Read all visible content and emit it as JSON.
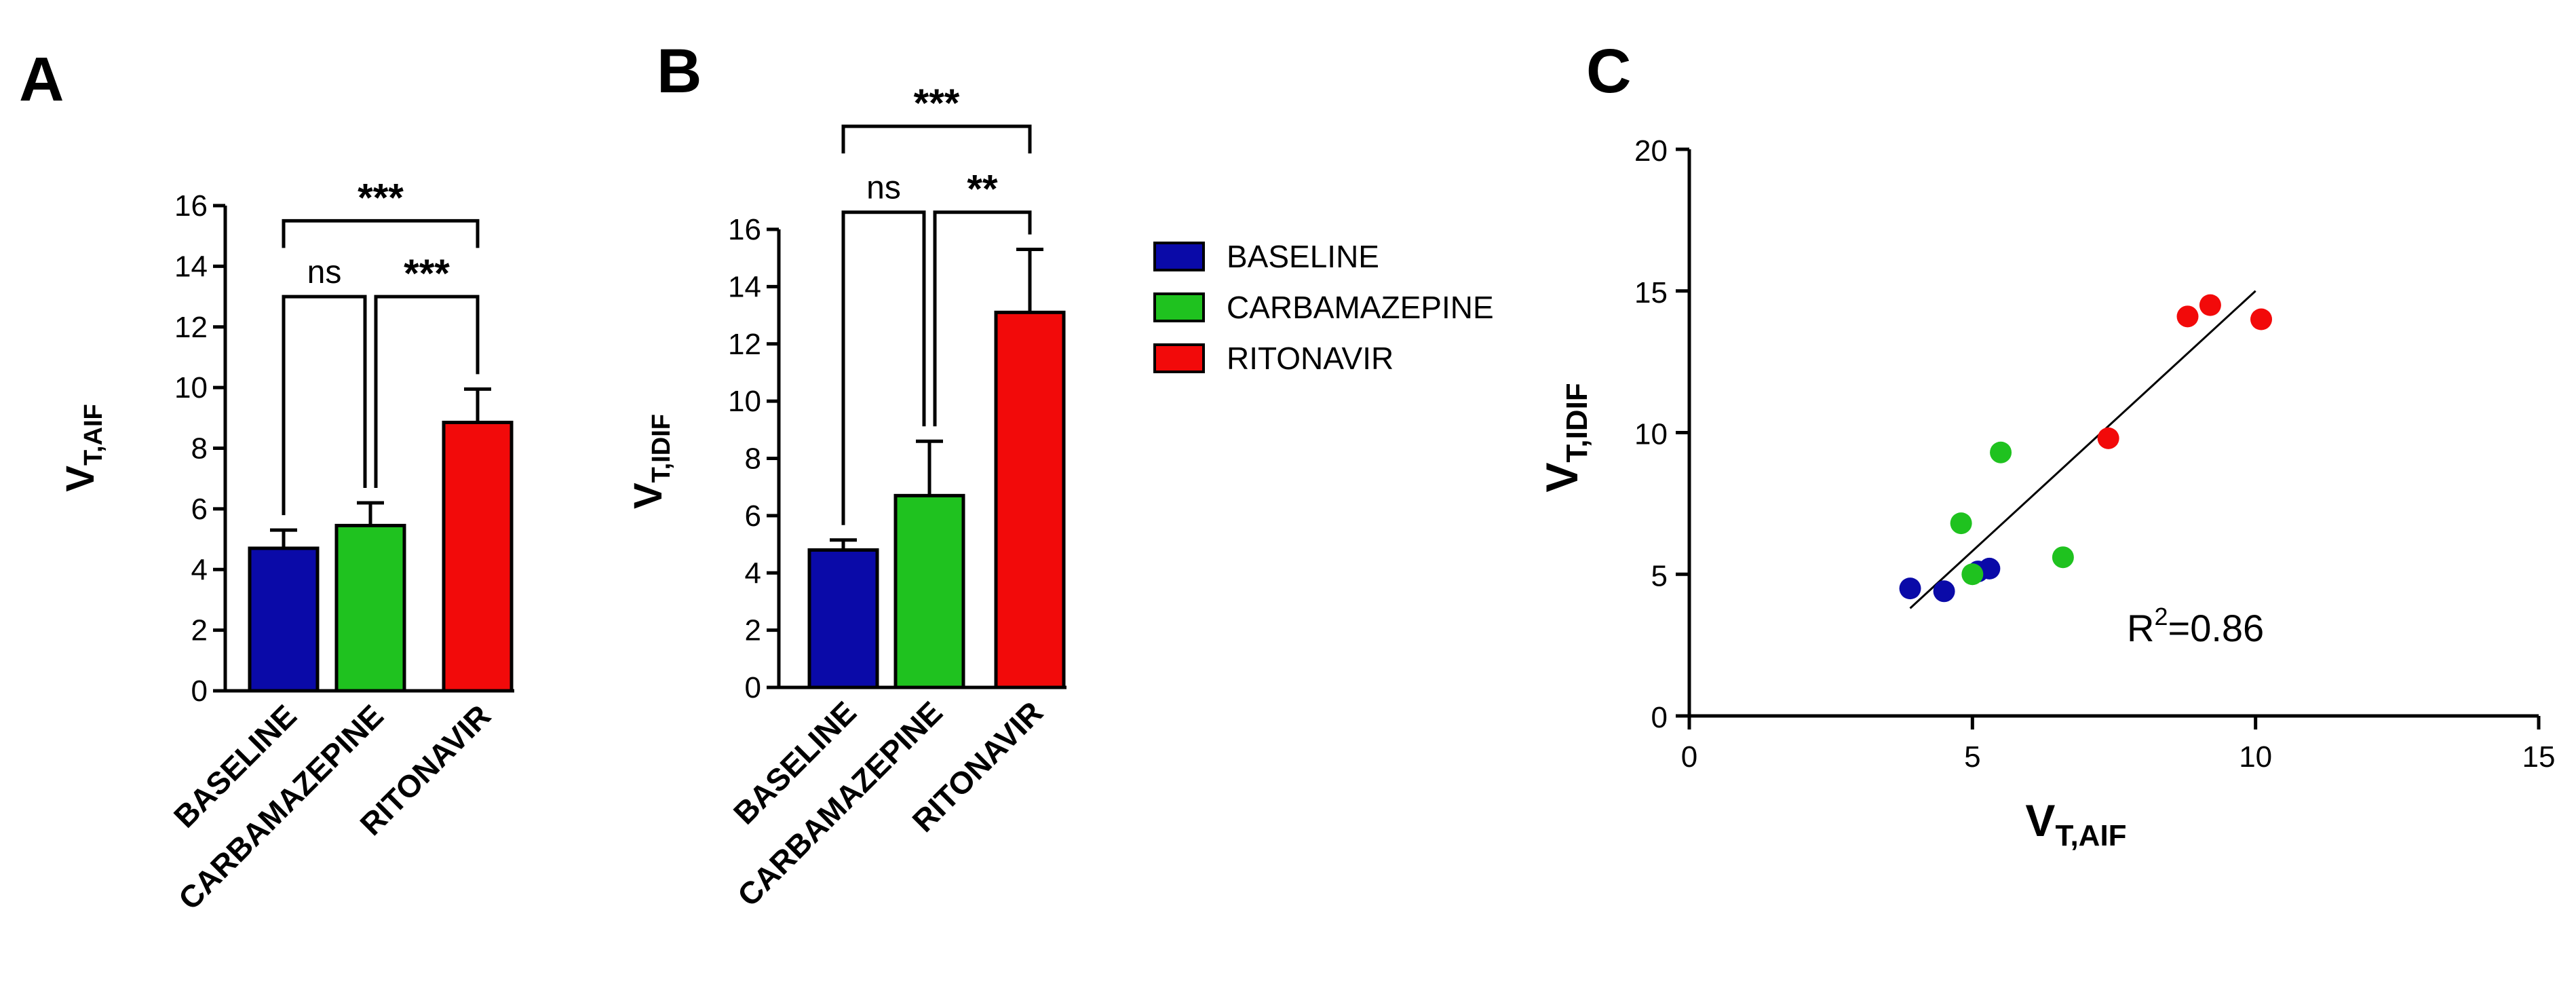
{
  "panels": {
    "a": "A",
    "b": "B",
    "c": "C"
  },
  "legend": [
    {
      "label": "BASELINE",
      "color": "#0a0aa8"
    },
    {
      "label": "CARBAMAZEPINE",
      "color": "#1fc21f"
    },
    {
      "label": "RITONAVIR",
      "color": "#f20a0a"
    }
  ],
  "chart_data": [
    {
      "id": "A",
      "type": "bar",
      "categories": [
        "BASELINE",
        "CARBAMAZEPINE",
        "RITONAVIR"
      ],
      "values": [
        4.7,
        5.45,
        8.85
      ],
      "errors": [
        0.6,
        0.75,
        1.1
      ],
      "colors": [
        "#0a0aa8",
        "#1fc21f",
        "#f20a0a"
      ],
      "ylabel_main": "V",
      "ylabel_sub": "T,AIF",
      "ylim": [
        0,
        16
      ],
      "yticks": [
        0,
        2,
        4,
        6,
        8,
        10,
        12,
        14,
        16
      ],
      "significance": [
        {
          "from": 0,
          "to": 1,
          "label": "ns",
          "level": 13.0
        },
        {
          "from": 1,
          "to": 2,
          "label": "***",
          "level": 13.0
        },
        {
          "from": 0,
          "to": 2,
          "label": "***",
          "level": 15.5
        }
      ]
    },
    {
      "id": "B",
      "type": "bar",
      "categories": [
        "BASELINE",
        "CARBAMAZEPINE",
        "RITONAVIR"
      ],
      "values": [
        4.8,
        6.7,
        13.1
      ],
      "errors": [
        0.35,
        1.9,
        2.2
      ],
      "colors": [
        "#0a0aa8",
        "#1fc21f",
        "#f20a0a"
      ],
      "ylabel_main": "V",
      "ylabel_sub": "T,IDIF",
      "ylim": [
        0,
        16
      ],
      "yticks": [
        0,
        2,
        4,
        6,
        8,
        10,
        12,
        14,
        16
      ],
      "significance": [
        {
          "from": 0,
          "to": 1,
          "label": "ns",
          "level": 16.6
        },
        {
          "from": 1,
          "to": 2,
          "label": "**",
          "level": 16.6
        },
        {
          "from": 0,
          "to": 2,
          "label": "***",
          "level": 19.6
        }
      ]
    },
    {
      "id": "C",
      "type": "scatter",
      "xlabel_main": "V",
      "xlabel_sub": "T,AIF",
      "ylabel_main": "V",
      "ylabel_sub": "T,IDIF",
      "xlim": [
        0,
        15
      ],
      "ylim": [
        0,
        20
      ],
      "xticks": [
        0,
        5,
        10,
        15
      ],
      "yticks": [
        0,
        5,
        10,
        15,
        20
      ],
      "series": [
        {
          "name": "BASELINE",
          "color": "#0a0aa8",
          "points": [
            [
              3.9,
              4.5
            ],
            [
              4.5,
              4.4
            ],
            [
              5.1,
              5.1
            ],
            [
              5.3,
              5.2
            ]
          ]
        },
        {
          "name": "CARBAMAZEPINE",
          "color": "#1fc21f",
          "points": [
            [
              4.8,
              6.8
            ],
            [
              5.0,
              5.0
            ],
            [
              5.5,
              9.3
            ],
            [
              6.6,
              5.6
            ]
          ]
        },
        {
          "name": "RITONAVIR",
          "color": "#f20a0a",
          "points": [
            [
              7.4,
              9.8
            ],
            [
              8.8,
              14.1
            ],
            [
              9.2,
              14.5
            ],
            [
              10.1,
              14.0
            ]
          ]
        }
      ],
      "fit": {
        "x": [
          3.9,
          10.0
        ],
        "y": [
          3.8,
          15.0
        ]
      },
      "annotation": {
        "main": "R",
        "sup": "2",
        "rest": "=0.86"
      }
    }
  ]
}
